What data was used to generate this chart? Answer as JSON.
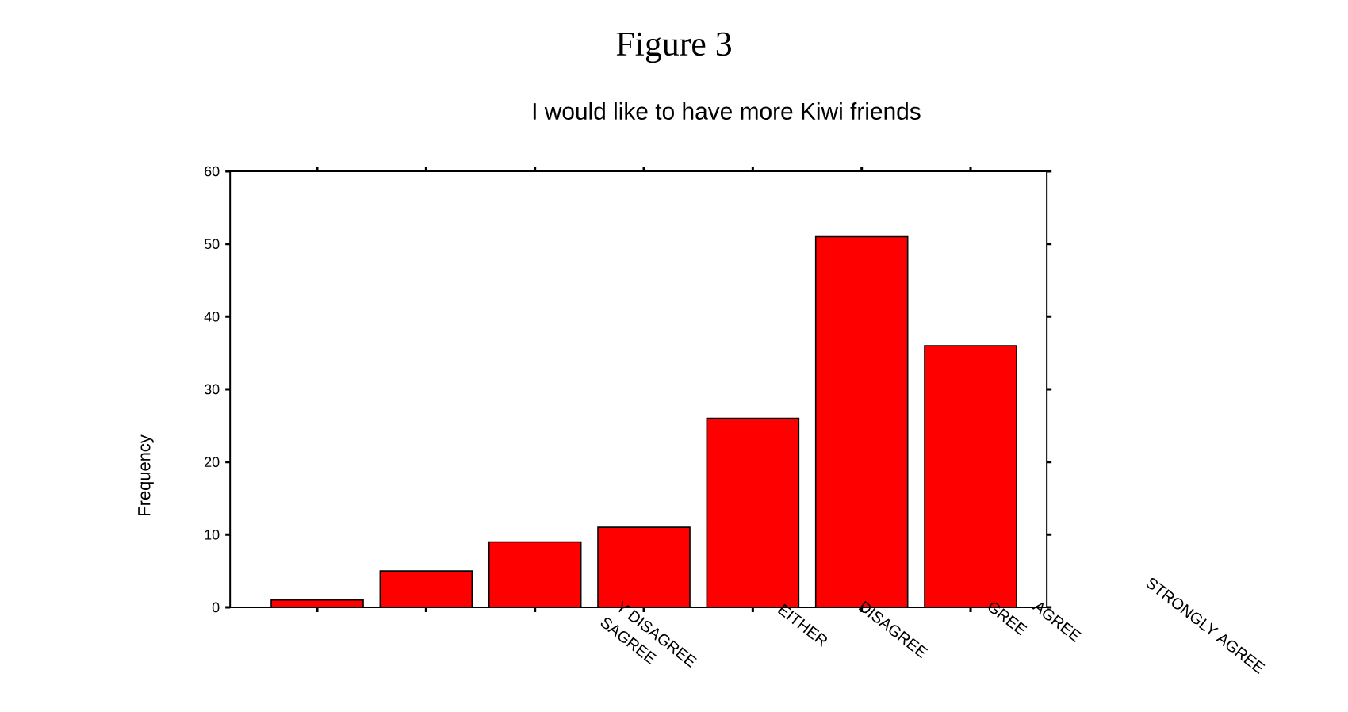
{
  "chart_data": {
    "type": "bar",
    "title": "Figure 3",
    "subtitle": "I would like to have more Kiwi friends",
    "ylabel": "Frequency",
    "categories": [
      null,
      null,
      null,
      null,
      null,
      null,
      null
    ],
    "values": [
      1,
      5,
      9,
      11,
      26,
      51,
      36
    ],
    "color": "#ff0000",
    "ylim": [
      0,
      60
    ],
    "yticks": [
      0,
      10,
      20,
      30,
      40,
      50,
      60
    ],
    "grid": false,
    "annotations": [
      "SAGREE",
      "Y DISAGREE",
      "EITHER",
      "DISAGREE",
      "GREE",
      "AGREE",
      "STRONGLY AGREE"
    ]
  }
}
